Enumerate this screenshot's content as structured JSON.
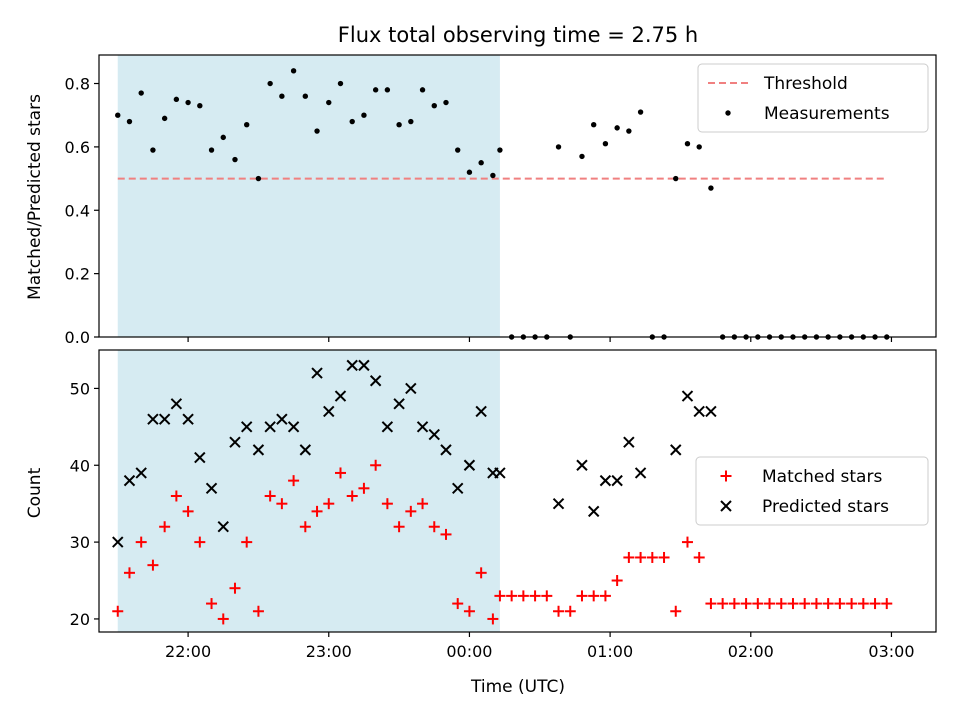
{
  "figure": {
    "title": "Flux total observing time = 2.75 h"
  },
  "colors": {
    "shade": "#add8e6",
    "threshold": "#f08080",
    "measure": "#000000",
    "matched": "#ff0000",
    "predicted": "#000000"
  },
  "chart_data": [
    {
      "type": "scatter",
      "ylabel": "Matched/Predicted stars",
      "ylim": [
        0,
        0.89
      ],
      "yticks": [
        "0.0",
        "0.2",
        "0.4",
        "0.6",
        "0.8"
      ],
      "ytick_values": [
        0,
        0.2,
        0.4,
        0.6,
        0.8
      ],
      "xlim": [
        "21:22",
        "03:19"
      ],
      "shaded_interval": [
        "21:30",
        "00:13"
      ],
      "legend_position": "upper right",
      "threshold": {
        "name": "Threshold",
        "y": 0.5,
        "x": [
          "21:30",
          "02:58"
        ]
      },
      "series": [
        {
          "name": "Measurements",
          "points": [
            [
              "21:30",
              0.7
            ],
            [
              "21:35",
              0.68
            ],
            [
              "21:40",
              0.77
            ],
            [
              "21:45",
              0.59
            ],
            [
              "21:50",
              0.69
            ],
            [
              "21:55",
              0.75
            ],
            [
              "22:00",
              0.74
            ],
            [
              "22:05",
              0.73
            ],
            [
              "22:10",
              0.59
            ],
            [
              "22:15",
              0.63
            ],
            [
              "22:20",
              0.56
            ],
            [
              "22:25",
              0.67
            ],
            [
              "22:30",
              0.5
            ],
            [
              "22:35",
              0.8
            ],
            [
              "22:40",
              0.76
            ],
            [
              "22:45",
              0.84
            ],
            [
              "22:50",
              0.76
            ],
            [
              "22:55",
              0.65
            ],
            [
              "23:00",
              0.74
            ],
            [
              "23:05",
              0.8
            ],
            [
              "23:10",
              0.68
            ],
            [
              "23:15",
              0.7
            ],
            [
              "23:20",
              0.78
            ],
            [
              "23:25",
              0.78
            ],
            [
              "23:30",
              0.67
            ],
            [
              "23:35",
              0.68
            ],
            [
              "23:40",
              0.78
            ],
            [
              "23:45",
              0.73
            ],
            [
              "23:50",
              0.74
            ],
            [
              "23:55",
              0.59
            ],
            [
              "00:00",
              0.52
            ],
            [
              "00:05",
              0.55
            ],
            [
              "00:10",
              0.51
            ],
            [
              "00:13",
              0.59
            ],
            [
              "00:18",
              0
            ],
            [
              "00:23",
              0
            ],
            [
              "00:28",
              0
            ],
            [
              "00:33",
              0
            ],
            [
              "00:38",
              0.6
            ],
            [
              "00:43",
              0
            ],
            [
              "00:48",
              0.57
            ],
            [
              "00:53",
              0.67
            ],
            [
              "00:58",
              0.61
            ],
            [
              "01:03",
              0.66
            ],
            [
              "01:08",
              0.65
            ],
            [
              "01:13",
              0.71
            ],
            [
              "01:18",
              0
            ],
            [
              "01:23",
              0
            ],
            [
              "01:28",
              0.5
            ],
            [
              "01:33",
              0.61
            ],
            [
              "01:38",
              0.6
            ],
            [
              "01:43",
              0.47
            ],
            [
              "01:48",
              0
            ],
            [
              "01:53",
              0
            ],
            [
              "01:58",
              0
            ],
            [
              "02:03",
              0
            ],
            [
              "02:08",
              0
            ],
            [
              "02:13",
              0
            ],
            [
              "02:18",
              0
            ],
            [
              "02:23",
              0
            ],
            [
              "02:28",
              0
            ],
            [
              "02:33",
              0
            ],
            [
              "02:38",
              0
            ],
            [
              "02:43",
              0
            ],
            [
              "02:48",
              0
            ],
            [
              "02:53",
              0
            ],
            [
              "02:58",
              0
            ]
          ]
        }
      ]
    },
    {
      "type": "scatter",
      "xlabel": "Time (UTC)",
      "ylabel": "Count",
      "ylim": [
        18.3,
        55
      ],
      "yticks": [
        "20",
        "30",
        "40",
        "50"
      ],
      "ytick_values": [
        20,
        30,
        40,
        50
      ],
      "xlim": [
        "21:22",
        "03:19"
      ],
      "xticks": [
        "22:00",
        "23:00",
        "00:00",
        "01:00",
        "02:00",
        "03:00"
      ],
      "xtick_values": [
        "22:00",
        "23:00",
        "00:00",
        "01:00",
        "02:00",
        "03:00"
      ],
      "shaded_interval": [
        "21:30",
        "00:13"
      ],
      "legend_position": "center right",
      "series": [
        {
          "name": "Matched stars",
          "points": [
            [
              "21:30",
              21
            ],
            [
              "21:35",
              26
            ],
            [
              "21:40",
              30
            ],
            [
              "21:45",
              27
            ],
            [
              "21:50",
              32
            ],
            [
              "21:55",
              36
            ],
            [
              "22:00",
              34
            ],
            [
              "22:05",
              30
            ],
            [
              "22:10",
              22
            ],
            [
              "22:15",
              20
            ],
            [
              "22:20",
              24
            ],
            [
              "22:25",
              30
            ],
            [
              "22:30",
              21
            ],
            [
              "22:35",
              36
            ],
            [
              "22:40",
              35
            ],
            [
              "22:45",
              38
            ],
            [
              "22:50",
              32
            ],
            [
              "22:55",
              34
            ],
            [
              "23:00",
              35
            ],
            [
              "23:05",
              39
            ],
            [
              "23:10",
              36
            ],
            [
              "23:15",
              37
            ],
            [
              "23:20",
              40
            ],
            [
              "23:25",
              35
            ],
            [
              "23:30",
              32
            ],
            [
              "23:35",
              34
            ],
            [
              "23:40",
              35
            ],
            [
              "23:45",
              32
            ],
            [
              "23:50",
              31
            ],
            [
              "23:55",
              22
            ],
            [
              "00:00",
              21
            ],
            [
              "00:05",
              26
            ],
            [
              "00:10",
              20
            ],
            [
              "00:13",
              23
            ],
            [
              "00:18",
              23
            ],
            [
              "00:23",
              23
            ],
            [
              "00:28",
              23
            ],
            [
              "00:33",
              23
            ],
            [
              "00:38",
              21
            ],
            [
              "00:43",
              21
            ],
            [
              "00:48",
              23
            ],
            [
              "00:53",
              23
            ],
            [
              "00:58",
              23
            ],
            [
              "01:03",
              25
            ],
            [
              "01:08",
              28
            ],
            [
              "01:13",
              28
            ],
            [
              "01:18",
              28
            ],
            [
              "01:23",
              28
            ],
            [
              "01:28",
              21
            ],
            [
              "01:33",
              30
            ],
            [
              "01:38",
              28
            ],
            [
              "01:43",
              22
            ],
            [
              "01:48",
              22
            ],
            [
              "01:53",
              22
            ],
            [
              "01:58",
              22
            ],
            [
              "02:03",
              22
            ],
            [
              "02:08",
              22
            ],
            [
              "02:13",
              22
            ],
            [
              "02:18",
              22
            ],
            [
              "02:23",
              22
            ],
            [
              "02:28",
              22
            ],
            [
              "02:33",
              22
            ],
            [
              "02:38",
              22
            ],
            [
              "02:43",
              22
            ],
            [
              "02:48",
              22
            ],
            [
              "02:53",
              22
            ],
            [
              "02:58",
              22
            ]
          ]
        },
        {
          "name": "Predicted stars",
          "points": [
            [
              "21:30",
              30
            ],
            [
              "21:35",
              38
            ],
            [
              "21:40",
              39
            ],
            [
              "21:45",
              46
            ],
            [
              "21:50",
              46
            ],
            [
              "21:55",
              48
            ],
            [
              "22:00",
              46
            ],
            [
              "22:05",
              41
            ],
            [
              "22:10",
              37
            ],
            [
              "22:15",
              32
            ],
            [
              "22:20",
              43
            ],
            [
              "22:25",
              45
            ],
            [
              "22:30",
              42
            ],
            [
              "22:35",
              45
            ],
            [
              "22:40",
              46
            ],
            [
              "22:45",
              45
            ],
            [
              "22:50",
              42
            ],
            [
              "22:55",
              52
            ],
            [
              "23:00",
              47
            ],
            [
              "23:05",
              49
            ],
            [
              "23:10",
              53
            ],
            [
              "23:15",
              53
            ],
            [
              "23:20",
              51
            ],
            [
              "23:25",
              45
            ],
            [
              "23:30",
              48
            ],
            [
              "23:35",
              50
            ],
            [
              "23:40",
              45
            ],
            [
              "23:45",
              44
            ],
            [
              "23:50",
              42
            ],
            [
              "23:55",
              37
            ],
            [
              "00:00",
              40
            ],
            [
              "00:05",
              47
            ],
            [
              "00:10",
              39
            ],
            [
              "00:13",
              39
            ],
            [
              "00:38",
              35
            ],
            [
              "00:48",
              40
            ],
            [
              "00:53",
              34
            ],
            [
              "00:58",
              38
            ],
            [
              "01:03",
              38
            ],
            [
              "01:08",
              43
            ],
            [
              "01:13",
              39
            ],
            [
              "01:28",
              42
            ],
            [
              "01:33",
              49
            ],
            [
              "01:38",
              47
            ],
            [
              "01:43",
              47
            ]
          ]
        }
      ]
    }
  ]
}
